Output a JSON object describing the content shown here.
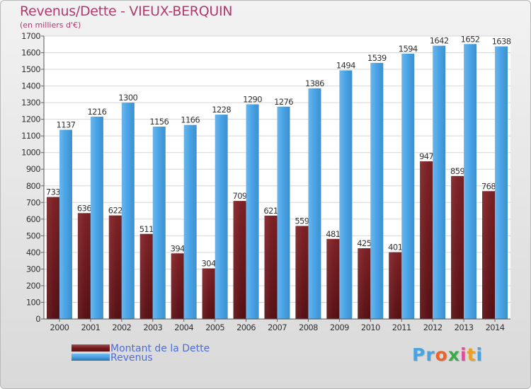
{
  "title": "Revenus/Dette - VIEUX-BERQUIN",
  "subtitle": "(en milliers d'€)",
  "logo": {
    "text": "Proxiti",
    "letters": [
      {
        "ch": "P",
        "color": "#4aa3df"
      },
      {
        "ch": "r",
        "color": "#4aa3df"
      },
      {
        "ch": "o",
        "color": "#e8642a"
      },
      {
        "ch": "x",
        "color": "#3bab4a"
      },
      {
        "ch": "i",
        "color": "#e84a9a"
      },
      {
        "ch": "t",
        "color": "#f0a020"
      },
      {
        "ch": "i",
        "color": "#4aa3df"
      }
    ]
  },
  "legend": [
    {
      "label": "Montant de la Dette",
      "color": "#7a1a1e"
    },
    {
      "label": "Revenus",
      "color": "#47a3e6"
    }
  ],
  "chart_data": {
    "type": "bar",
    "title": "Revenus/Dette - VIEUX-BERQUIN",
    "ylabel": "(en milliers d'€)",
    "xlabel": "",
    "ylim": [
      0,
      1700
    ],
    "ytick_step": 100,
    "grid": true,
    "categories": [
      "2000",
      "2001",
      "2002",
      "2003",
      "2004",
      "2005",
      "2006",
      "2007",
      "2008",
      "2009",
      "2010",
      "2011",
      "2012",
      "2013",
      "2014"
    ],
    "series": [
      {
        "name": "Montant de la Dette",
        "color": "#7a1a1e",
        "values": [
          733,
          636,
          622,
          511,
          394,
          304,
          709,
          621,
          559,
          481,
          425,
          401,
          947,
          859,
          768
        ]
      },
      {
        "name": "Revenus",
        "color": "#47a3e6",
        "values": [
          1137,
          1216,
          1300,
          1156,
          1166,
          1228,
          1290,
          1276,
          1386,
          1494,
          1539,
          1594,
          1642,
          1652,
          1638
        ]
      }
    ]
  }
}
